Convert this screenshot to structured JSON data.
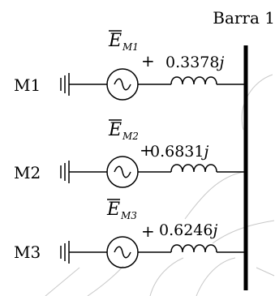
{
  "bus": {
    "label": "Barra 1"
  },
  "machines": [
    {
      "label": "M1",
      "emf_main": "E",
      "emf_sub": "M1",
      "plus": "+",
      "value": "0.3378",
      "j": "j"
    },
    {
      "label": "M2",
      "emf_main": "E",
      "emf_sub": "M2",
      "plus": "+",
      "value": "0.6831",
      "j": "j"
    },
    {
      "label": "M3",
      "emf_main": "E",
      "emf_sub": "M3",
      "plus": "+",
      "value": "0.6246",
      "j": "j"
    }
  ],
  "colors": {
    "line": "#000000",
    "sketch": "#c8c8c8",
    "background": "#ffffff"
  }
}
